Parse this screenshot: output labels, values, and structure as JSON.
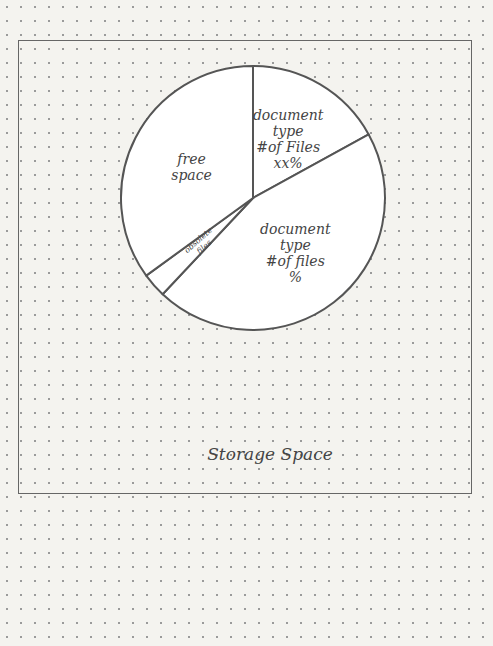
{
  "chart_data": {
    "type": "pie",
    "title": "Storage Space",
    "categories": [
      "document\ntype\n#of Files\nxx%",
      "document\ntype\n#of files\n%",
      "obsolete\nfiles",
      "free\nspace"
    ],
    "values": [
      17,
      45,
      3,
      35
    ],
    "colors": [
      "#ffffff",
      "#ffffff",
      "#ffffff",
      "#ffffff"
    ]
  }
}
